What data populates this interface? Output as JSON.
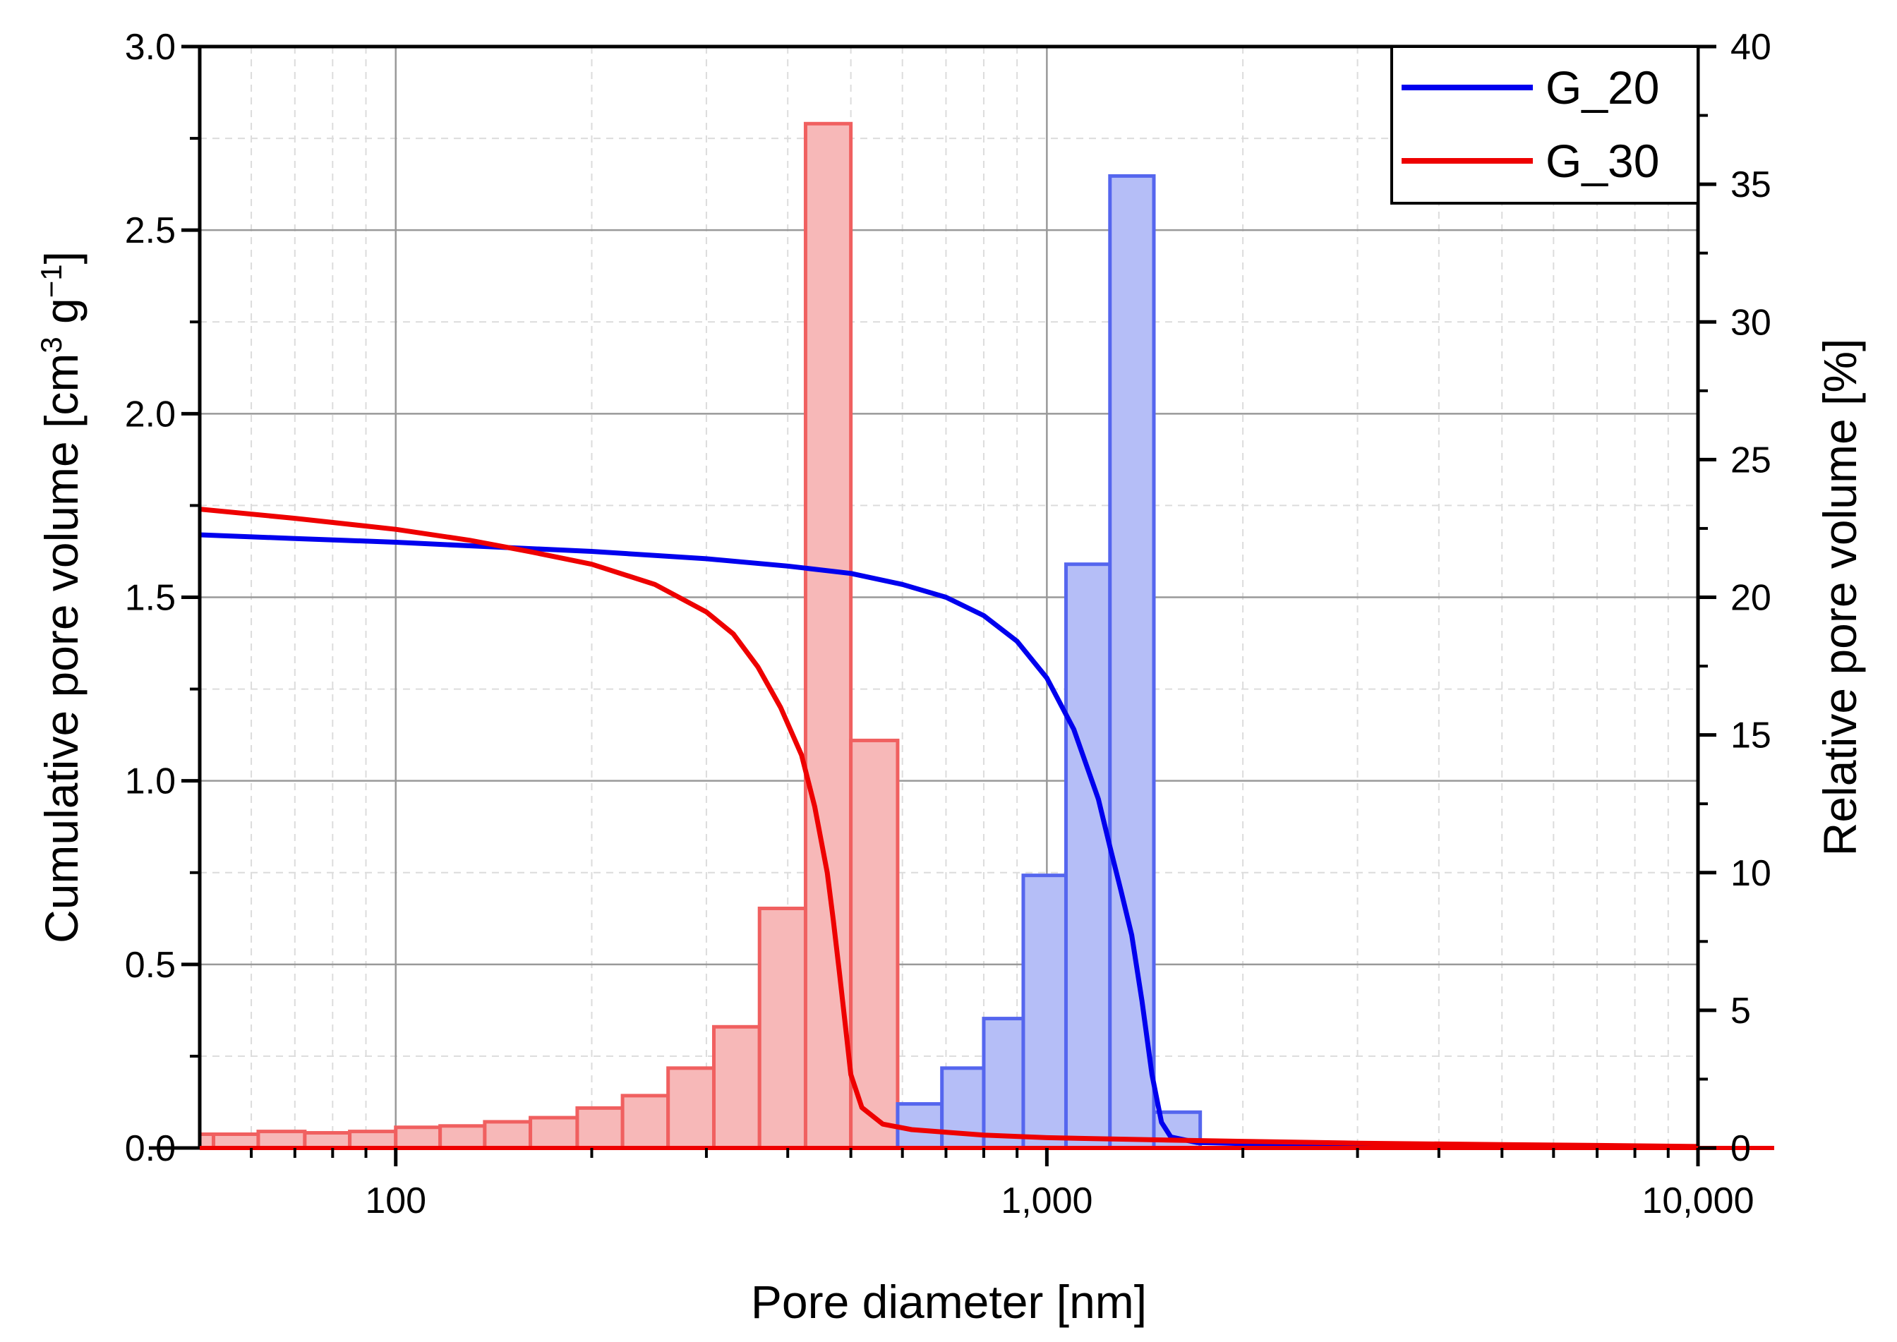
{
  "chart_data": {
    "type": "bar",
    "xlabel": "Pore diameter [nm]",
    "ylabel": {
      "main": "Cumulative pore volume [cm",
      "sup1": "3",
      "mid": " g",
      "sup2": "−1",
      "end": "]"
    },
    "ylabel_right": "Relative pore volume [%]",
    "x_scale": "log",
    "xlim": [
      50,
      10000
    ],
    "ylim": [
      0,
      3.0
    ],
    "ylim_right": [
      0,
      40
    ],
    "x_ticks": [
      {
        "value": 100,
        "label": "100"
      },
      {
        "value": 1000,
        "label": "1,000"
      },
      {
        "value": 10000,
        "label": "10,000"
      }
    ],
    "y_ticks": [
      {
        "value": 0,
        "label": "0.0"
      },
      {
        "value": 0.5,
        "label": "0.5"
      },
      {
        "value": 1.0,
        "label": "1.0"
      },
      {
        "value": 1.5,
        "label": "1.5"
      },
      {
        "value": 2.0,
        "label": "2.0"
      },
      {
        "value": 2.5,
        "label": "2.5"
      },
      {
        "value": 3.0,
        "label": "3.0"
      }
    ],
    "y_ticks_right": [
      {
        "value": 0,
        "label": "0"
      },
      {
        "value": 5,
        "label": "5"
      },
      {
        "value": 10,
        "label": "10"
      },
      {
        "value": 15,
        "label": "15"
      },
      {
        "value": 20,
        "label": "20"
      },
      {
        "value": 25,
        "label": "25"
      },
      {
        "value": 30,
        "label": "30"
      },
      {
        "value": 35,
        "label": "35"
      },
      {
        "value": 40,
        "label": "40"
      }
    ],
    "grid": true,
    "legend_position": "top-right",
    "histograms": [
      {
        "name": "G_30",
        "color": "#f06060",
        "fill": "#f7b8b8",
        "axis": "right",
        "bins": [
          [
            44.5,
            52.5,
            0.5
          ],
          [
            52.5,
            61.5,
            0.5
          ],
          [
            61.5,
            72.5,
            0.6
          ],
          [
            72.5,
            85,
            0.55
          ],
          [
            85,
            100,
            0.6
          ],
          [
            100,
            117,
            0.75
          ],
          [
            117,
            137,
            0.8
          ],
          [
            137,
            161,
            0.95
          ],
          [
            161,
            190,
            1.1
          ],
          [
            190,
            223,
            1.45
          ],
          [
            223,
            262,
            1.9
          ],
          [
            262,
            308,
            2.9
          ],
          [
            308,
            362,
            4.4
          ],
          [
            362,
            426,
            8.7
          ],
          [
            426,
            500,
            37.2
          ],
          [
            500,
            590,
            14.8
          ]
        ]
      },
      {
        "name": "G_20",
        "color": "#5566ee",
        "fill": "#b5bef7",
        "axis": "right",
        "bins": [
          [
            590,
            690,
            1.6
          ],
          [
            690,
            800,
            2.9
          ],
          [
            800,
            920,
            4.7
          ],
          [
            920,
            1070,
            9.9
          ],
          [
            1070,
            1250,
            21.2
          ],
          [
            1250,
            1460,
            35.3
          ],
          [
            1460,
            1720,
            1.3
          ]
        ]
      }
    ],
    "series": [
      {
        "name": "G_20",
        "color": "#0000ee",
        "axis": "left",
        "points": [
          [
            50,
            1.67
          ],
          [
            70,
            1.66
          ],
          [
            100,
            1.65
          ],
          [
            150,
            1.635
          ],
          [
            200,
            1.625
          ],
          [
            300,
            1.605
          ],
          [
            400,
            1.585
          ],
          [
            500,
            1.565
          ],
          [
            600,
            1.535
          ],
          [
            700,
            1.5
          ],
          [
            800,
            1.45
          ],
          [
            900,
            1.38
          ],
          [
            1000,
            1.28
          ],
          [
            1100,
            1.14
          ],
          [
            1200,
            0.95
          ],
          [
            1250,
            0.82
          ],
          [
            1300,
            0.7
          ],
          [
            1350,
            0.58
          ],
          [
            1400,
            0.4
          ],
          [
            1450,
            0.2
          ],
          [
            1500,
            0.07
          ],
          [
            1550,
            0.03
          ],
          [
            1700,
            0.015
          ],
          [
            2000,
            0.012
          ],
          [
            3000,
            0.008
          ],
          [
            5000,
            0.005
          ],
          [
            7000,
            0.004
          ],
          [
            10000,
            0.003
          ]
        ]
      },
      {
        "name": "G_30",
        "color": "#ee0000",
        "axis": "left",
        "points": [
          [
            50,
            1.74
          ],
          [
            70,
            1.715
          ],
          [
            100,
            1.685
          ],
          [
            130,
            1.655
          ],
          [
            160,
            1.625
          ],
          [
            200,
            1.59
          ],
          [
            250,
            1.535
          ],
          [
            300,
            1.46
          ],
          [
            330,
            1.4
          ],
          [
            360,
            1.31
          ],
          [
            390,
            1.2
          ],
          [
            420,
            1.07
          ],
          [
            440,
            0.93
          ],
          [
            460,
            0.75
          ],
          [
            470,
            0.62
          ],
          [
            480,
            0.48
          ],
          [
            490,
            0.34
          ],
          [
            500,
            0.2
          ],
          [
            520,
            0.11
          ],
          [
            560,
            0.065
          ],
          [
            620,
            0.05
          ],
          [
            800,
            0.035
          ],
          [
            1000,
            0.028
          ],
          [
            1500,
            0.022
          ],
          [
            2000,
            0.018
          ],
          [
            3000,
            0.013
          ],
          [
            5000,
            0.009
          ],
          [
            7000,
            0.007
          ],
          [
            10000,
            0.004
          ]
        ]
      }
    ],
    "legend": [
      {
        "name": "G_20",
        "color": "#0000ee"
      },
      {
        "name": "G_30",
        "color": "#ee0000"
      }
    ]
  }
}
